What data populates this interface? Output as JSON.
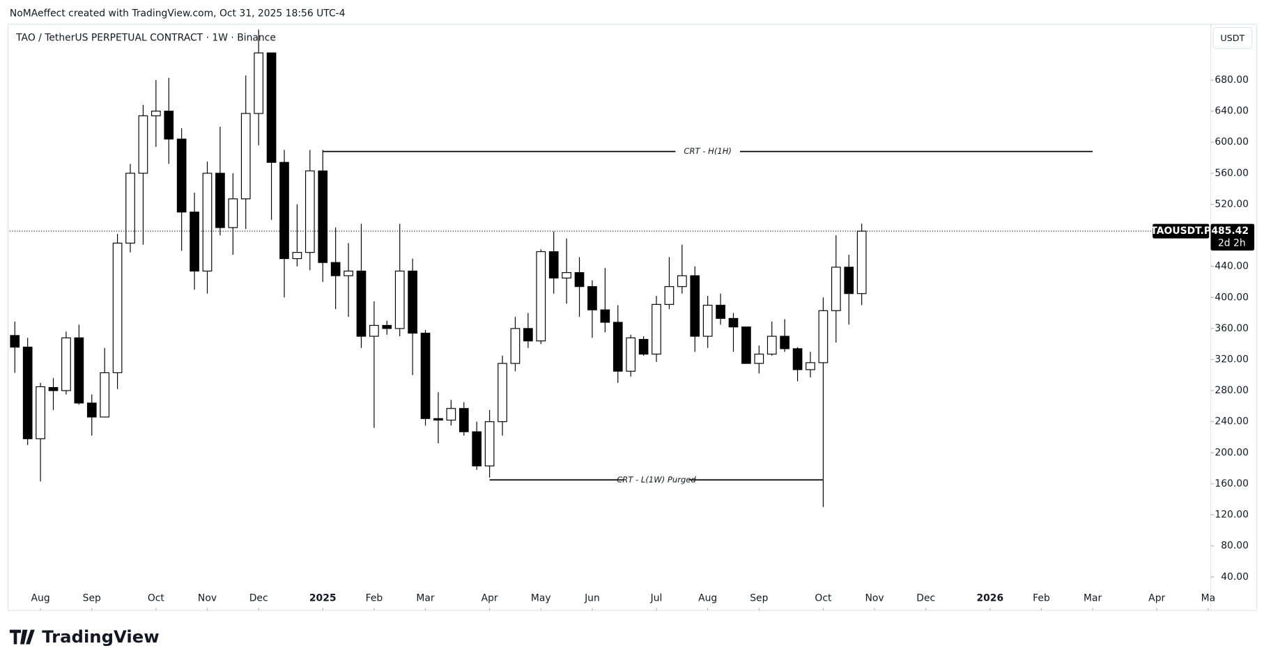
{
  "header": "NoMAeffect created with TradingView.com, Oct 31, 2025 18:56 UTC-4",
  "footer": "TradingView",
  "chart_data": {
    "type": "candlestick",
    "title": "TAO / TetherUS PERPETUAL CONTRACT · 1W · Binance",
    "currency": "USDT",
    "symbol": "TAOUSDT.P",
    "countdown": "2d 2h",
    "up_color": "#ffffff",
    "down_color": "#000000",
    "wick_color": "#000000",
    "open": [
      351,
      336,
      218,
      284,
      280,
      348,
      264,
      246,
      303,
      470,
      560,
      634,
      640,
      604,
      510,
      434,
      560,
      490,
      527,
      637,
      715,
      574,
      450,
      458,
      563,
      445,
      428,
      434,
      350,
      364,
      360,
      434,
      354,
      244,
      242,
      257,
      227,
      183,
      240,
      315,
      360,
      344,
      459,
      425,
      432,
      414,
      384,
      368,
      305,
      346,
      327,
      391,
      414,
      428,
      350,
      390,
      373,
      362,
      315,
      327,
      350,
      334,
      307,
      316,
      383,
      439,
      405
    ],
    "high": [
      369,
      348,
      290,
      296,
      356,
      365,
      275,
      335,
      482,
      572,
      648,
      680,
      683,
      618,
      535,
      575,
      620,
      560,
      686,
      745,
      715,
      590,
      520,
      590,
      590,
      490,
      470,
      495,
      395,
      370,
      495,
      450,
      358,
      278,
      268,
      265,
      240,
      255,
      325,
      375,
      380,
      462,
      485,
      476,
      452,
      422,
      438,
      390,
      352,
      350,
      402,
      452,
      468,
      440,
      402,
      405,
      380,
      362,
      338,
      369,
      372,
      336,
      330,
      400,
      480,
      455,
      495
    ],
    "low": [
      303,
      210,
      163,
      255,
      275,
      262,
      222,
      246,
      282,
      458,
      468,
      594,
      572,
      460,
      410,
      405,
      480,
      455,
      488,
      596,
      500,
      400,
      440,
      435,
      420,
      385,
      375,
      335,
      232,
      352,
      350,
      300,
      235,
      212,
      235,
      222,
      178,
      168,
      222,
      305,
      335,
      340,
      405,
      392,
      375,
      348,
      355,
      290,
      298,
      325,
      317,
      385,
      405,
      330,
      335,
      365,
      330,
      315,
      302,
      325,
      330,
      292,
      297,
      130,
      342,
      365,
      390
    ],
    "close": [
      336,
      218,
      285,
      280,
      348,
      264,
      246,
      303,
      470,
      560,
      634,
      640,
      604,
      510,
      434,
      560,
      490,
      527,
      637,
      715,
      574,
      450,
      458,
      563,
      445,
      428,
      434,
      350,
      364,
      360,
      434,
      354,
      244,
      242,
      257,
      227,
      183,
      240,
      315,
      360,
      344,
      459,
      425,
      432,
      414,
      384,
      368,
      305,
      348,
      327,
      391,
      414,
      428,
      350,
      390,
      373,
      362,
      315,
      327,
      350,
      334,
      307,
      316,
      383,
      439,
      405,
      485.42
    ],
    "close_label": "485.42",
    "xlim": [
      -0.4,
      93.2
    ],
    "ylim": [
      0,
      752
    ],
    "xticks": [
      {
        "value": 2,
        "label": "Aug"
      },
      {
        "value": 6,
        "label": "Sep"
      },
      {
        "value": 11,
        "label": "Oct"
      },
      {
        "value": 15,
        "label": "Nov"
      },
      {
        "value": 19,
        "label": "Dec"
      },
      {
        "value": 24,
        "label": "2025"
      },
      {
        "value": 28,
        "label": "Feb"
      },
      {
        "value": 32,
        "label": "Mar"
      },
      {
        "value": 37,
        "label": "Apr"
      },
      {
        "value": 41,
        "label": "May"
      },
      {
        "value": 45,
        "label": "Jun"
      },
      {
        "value": 50,
        "label": "Jul"
      },
      {
        "value": 54,
        "label": "Aug"
      },
      {
        "value": 58,
        "label": "Sep"
      },
      {
        "value": 63,
        "label": "Oct"
      },
      {
        "value": 67,
        "label": "Nov"
      },
      {
        "value": 71,
        "label": "Dec"
      },
      {
        "value": 76,
        "label": "2026"
      },
      {
        "value": 80,
        "label": "Feb"
      },
      {
        "value": 84,
        "label": "Mar"
      },
      {
        "value": 89,
        "label": "Apr"
      },
      {
        "value": 93,
        "label": "Ma"
      }
    ],
    "yticks": [
      {
        "value": 40,
        "label": "40.00"
      },
      {
        "value": 80,
        "label": "80.00"
      },
      {
        "value": 120,
        "label": "120.00"
      },
      {
        "value": 160,
        "label": "160.00"
      },
      {
        "value": 200,
        "label": "200.00"
      },
      {
        "value": 240,
        "label": "240.00"
      },
      {
        "value": 280,
        "label": "280.00"
      },
      {
        "value": 320,
        "label": "320.00"
      },
      {
        "value": 360,
        "label": "360.00"
      },
      {
        "value": 400,
        "label": "400.00"
      },
      {
        "value": 440,
        "label": "440.00"
      },
      {
        "value": 480,
        "label": "480.00"
      },
      {
        "value": 520,
        "label": "520.00"
      },
      {
        "value": 560,
        "label": "560.00"
      },
      {
        "value": 600,
        "label": "600.00"
      },
      {
        "value": 640,
        "label": "640.00"
      },
      {
        "value": 680,
        "label": "680.00"
      }
    ],
    "annotations": [
      {
        "text": "CRT - H(1H)",
        "value": 588,
        "x": [
          24,
          84
        ]
      },
      {
        "text": "CRT - L(1W) Purged",
        "value": 165,
        "x": [
          37,
          63
        ]
      }
    ]
  }
}
